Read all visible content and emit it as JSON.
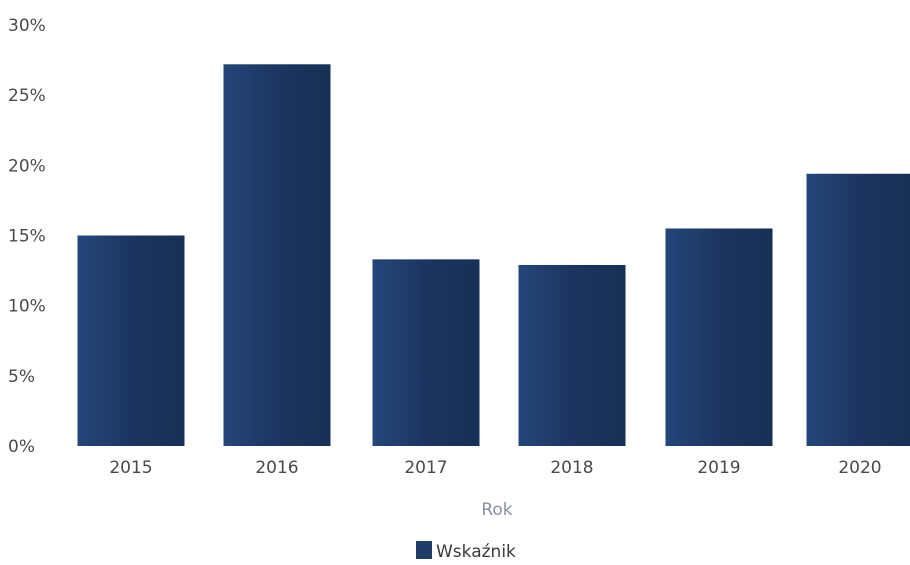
{
  "chart_data": {
    "type": "bar",
    "categories": [
      "2015",
      "2016",
      "2017",
      "2018",
      "2019",
      "2020"
    ],
    "series": [
      {
        "name": "Wskaźnik",
        "values": [
          15.0,
          27.2,
          13.3,
          12.9,
          15.5,
          19.4
        ],
        "color": "#1f3b66"
      }
    ],
    "ylim": [
      0,
      30
    ],
    "yticks": [
      0,
      5,
      10,
      15,
      20,
      25,
      30
    ],
    "ytick_labels": [
      "0%",
      "5%",
      "10%",
      "15%",
      "20%",
      "25%",
      "30%"
    ],
    "xlabel": "Rok",
    "ylabel": "",
    "title": "",
    "grid": false,
    "legend": "bottom-center"
  }
}
